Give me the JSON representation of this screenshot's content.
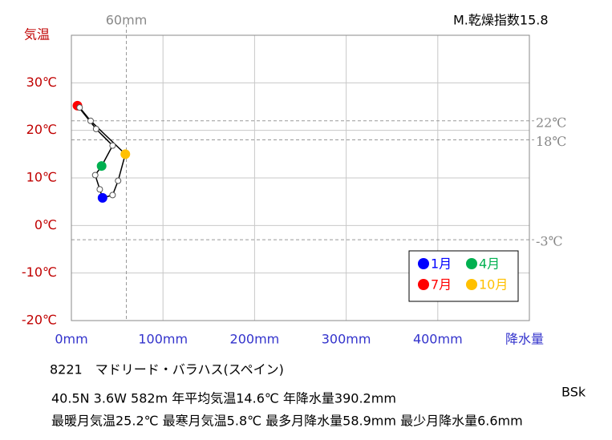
{
  "chart_data": {
    "type": "line",
    "title": "8221　マドリード・バラハス(スペイン)",
    "ylabel": "気温",
    "xlabel": "降水量",
    "climate_code": "BSk",
    "aridity": "M.乾燥指数15.8",
    "info_lines": [
      "40.5N  3.6W 582m  年平均気温14.6℃ 年降水量390.2mm",
      "最暖月気温25.2℃ 最寒月気温5.8℃ 最多月降水量58.9mm 最少月降水量6.6mm"
    ],
    "x": [
      34,
      31,
      26,
      33,
      45,
      27,
      6.6,
      9,
      21,
      58.9,
      51,
      45
    ],
    "values": [
      5.8,
      7.6,
      10.6,
      12.5,
      16.8,
      20.3,
      25.2,
      24.8,
      22,
      15,
      9.4,
      6.4
    ],
    "marker_colors": [
      "#0000ff",
      "#ffffff",
      "#ffffff",
      "#00b050",
      "#ffffff",
      "#ffffff",
      "#ff0000",
      "#ffffff",
      "#ffffff",
      "#ffc000",
      "#ffffff",
      "#ffffff"
    ],
    "legend": [
      {
        "label": "1月",
        "color": "#0000ff"
      },
      {
        "label": "4月",
        "color": "#00b050"
      },
      {
        "label": "7月",
        "color": "#ff0000"
      },
      {
        "label": "10月",
        "color": "#ffc000"
      }
    ],
    "xlim": [
      0,
      500
    ],
    "ylim": [
      -20,
      40
    ],
    "xticks": [
      {
        "value": 0,
        "label": "0mm"
      },
      {
        "value": 100,
        "label": "100mm"
      },
      {
        "value": 200,
        "label": "200mm"
      },
      {
        "value": 300,
        "label": "300mm"
      },
      {
        "value": 400,
        "label": "400mm"
      }
    ],
    "yticks": [
      {
        "value": -20,
        "label": "-20℃"
      },
      {
        "value": -10,
        "label": "-10℃"
      },
      {
        "value": 0,
        "label": "0℃"
      },
      {
        "value": 10,
        "label": "10℃"
      },
      {
        "value": 20,
        "label": "20℃"
      },
      {
        "value": 30,
        "label": "30℃"
      }
    ],
    "reference_lines": [
      {
        "value": 22,
        "label": "22℃"
      },
      {
        "value": 18,
        "label": "18℃"
      },
      {
        "value": -3,
        "label": "-3℃"
      }
    ],
    "x_reference": {
      "value": 60,
      "label": "60mm"
    },
    "grid": true
  }
}
